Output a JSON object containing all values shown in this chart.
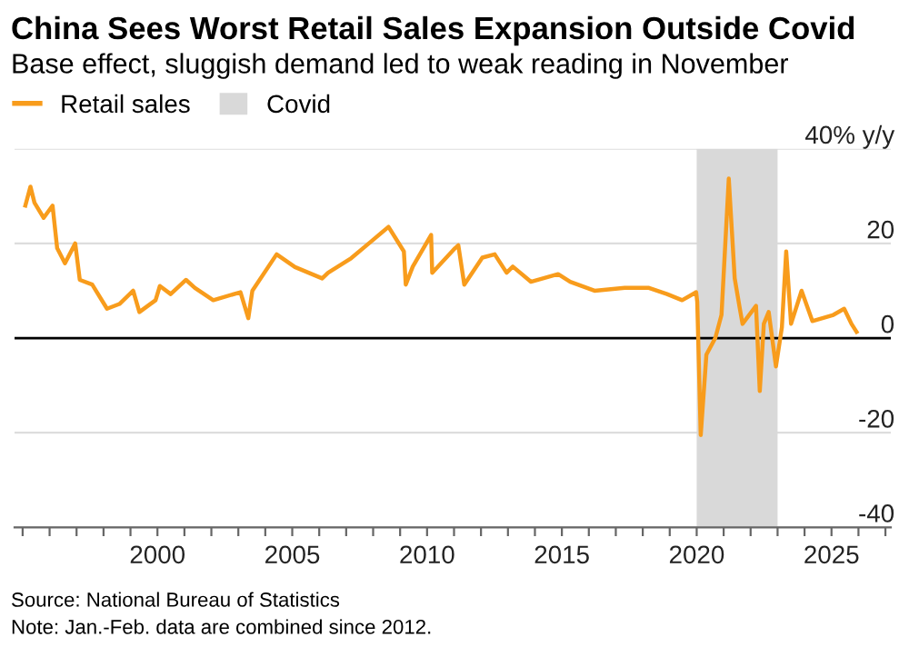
{
  "chart_data": {
    "type": "line",
    "title": "China Sees Worst Retail Sales Expansion Outside Covid",
    "subtitle": "Base effect, sluggish demand led to weak reading in November",
    "series": [
      {
        "name": "Retail sales",
        "color": "#f89c1c",
        "x": [
          1995.1,
          1995.29,
          1995.44,
          1995.78,
          1996.11,
          1996.28,
          1996.57,
          1996.95,
          1997.12,
          1997.58,
          1998.13,
          1998.59,
          1999.1,
          1999.33,
          1999.93,
          2000.09,
          2000.49,
          2001.06,
          2001.39,
          2002.07,
          2003.08,
          2003.37,
          2003.52,
          2004.42,
          2005.1,
          2006.11,
          2006.33,
          2007.19,
          2007.9,
          2008.57,
          2009.14,
          2009.21,
          2009.47,
          2010.15,
          2010.19,
          2011.04,
          2011.16,
          2011.38,
          2012.05,
          2012.51,
          2012.95,
          2013.18,
          2013.85,
          2014.86,
          2015.31,
          2016.21,
          2017.33,
          2018.23,
          2018.9,
          2019.46,
          2019.98,
          2020.02,
          2020.15,
          2020.36,
          2020.69,
          2020.92,
          2021.19,
          2021.41,
          2021.6,
          2021.7,
          2022.2,
          2022.34,
          2022.49,
          2022.67,
          2022.94,
          2023.16,
          2023.32,
          2023.5,
          2023.89,
          2024.29,
          2025.07,
          2025.47,
          2025.74,
          2025.93
        ],
        "values": [
          28,
          32,
          28.6,
          25.4,
          28,
          19,
          15.8,
          20,
          12.3,
          11.3,
          6.2,
          7.2,
          10,
          5.5,
          8,
          11,
          9.3,
          12.3,
          10.6,
          8,
          9.7,
          4.2,
          10,
          17.7,
          15,
          12.6,
          13.8,
          16.9,
          20.3,
          23.5,
          18.3,
          11.3,
          15.1,
          21.8,
          13.8,
          19,
          19.6,
          11.3,
          17,
          17.7,
          13.8,
          15.1,
          11.9,
          13.5,
          11.9,
          10,
          10.6,
          10.6,
          9.3,
          8,
          9.7,
          7.7,
          -20.5,
          -3.5,
          0,
          4.9,
          33.7,
          12.6,
          6.2,
          3,
          6.8,
          -11.2,
          3,
          5.5,
          -6,
          2.3,
          18.3,
          3,
          10,
          3.6,
          4.9,
          6.2,
          3,
          1.3
        ]
      }
    ],
    "bands": [
      {
        "axis": "x",
        "from": 2020.0,
        "to": 2023.0,
        "label": "Covid",
        "color": "#d9d9d9"
      }
    ],
    "ref_lines": [
      {
        "axis": "y",
        "value": 0,
        "color": "#000000"
      }
    ],
    "xlim": [
      1994.7,
      2027.2
    ],
    "xticks": [
      {
        "value": 1995,
        "label": null
      },
      {
        "value": 1996,
        "label": null
      },
      {
        "value": 1997,
        "label": null
      },
      {
        "value": 1998,
        "label": null
      },
      {
        "value": 1999,
        "label": null
      },
      2000,
      {
        "value": 2001,
        "label": null
      },
      {
        "value": 2002,
        "label": null
      },
      {
        "value": 2003,
        "label": null
      },
      {
        "value": 2004,
        "label": null
      },
      2005,
      {
        "value": 2006,
        "label": null
      },
      {
        "value": 2007,
        "label": null
      },
      {
        "value": 2008,
        "label": null
      },
      {
        "value": 2009,
        "label": null
      },
      2010,
      {
        "value": 2011,
        "label": null
      },
      {
        "value": 2012,
        "label": null
      },
      {
        "value": 2013,
        "label": null
      },
      {
        "value": 2014,
        "label": null
      },
      2015,
      {
        "value": 2016,
        "label": null
      },
      {
        "value": 2017,
        "label": null
      },
      {
        "value": 2018,
        "label": null
      },
      {
        "value": 2019,
        "label": null
      },
      2020,
      {
        "value": 2021,
        "label": null
      },
      {
        "value": 2022,
        "label": null
      },
      {
        "value": 2023,
        "label": null
      },
      {
        "value": 2024,
        "label": null
      },
      2025,
      {
        "value": 2026,
        "label": null
      },
      {
        "value": 2027,
        "label": null
      }
    ],
    "ylim": [
      -40,
      40
    ],
    "yticks": [
      {
        "value": -40,
        "label": "-40"
      },
      {
        "value": -20,
        "label": "-20"
      },
      0,
      20,
      {
        "value": 40,
        "label": "40% y/y"
      }
    ],
    "grid": "y",
    "legend": "top left",
    "line_style": "solid",
    "marker": "none",
    "annotations": [
      "Source: National Bureau of Statistics",
      "Note: Jan.-Feb. data are combined since 2012."
    ]
  }
}
